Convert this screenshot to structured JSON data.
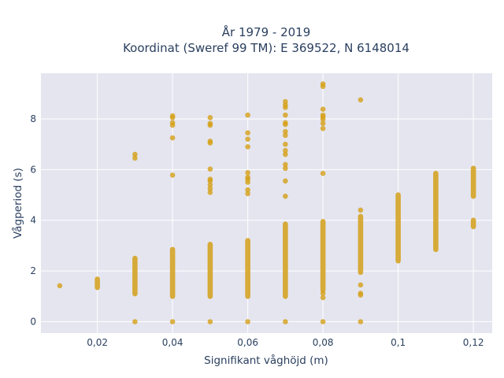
{
  "chart_data": {
    "type": "scatter",
    "title": "År 1979 - 2019",
    "subtitle": "Koordinat (Sweref 99 TM): E 369522, N 6148014",
    "xlabel": "Signifikant våghöjd (m)",
    "ylabel": "Vågperiod (s)",
    "xlim": [
      0.005,
      0.125
    ],
    "ylim": [
      -0.45,
      9.8
    ],
    "x_ticks": [
      0.02,
      0.04,
      0.06,
      0.08,
      0.1,
      0.12
    ],
    "x_tick_labels": [
      "0,02",
      "0,04",
      "0,06",
      "0,08",
      "0,1",
      "0,12"
    ],
    "y_ticks": [
      0,
      2,
      4,
      6,
      8
    ],
    "y_tick_labels": [
      "0",
      "2",
      "4",
      "6",
      "8"
    ],
    "grid": true,
    "background": "#e5e5f0",
    "marker_color": "#d4a017",
    "series": [
      {
        "ranges": [
          {
            "x": 0.02,
            "from": 1.35,
            "to": 1.68
          },
          {
            "x": 0.03,
            "from": 1.1,
            "to": 2.5
          },
          {
            "x": 0.04,
            "from": 1.0,
            "to": 2.85
          },
          {
            "x": 0.05,
            "from": 1.0,
            "to": 3.05
          },
          {
            "x": 0.06,
            "from": 1.0,
            "to": 3.2
          },
          {
            "x": 0.07,
            "from": 1.0,
            "to": 3.85
          },
          {
            "x": 0.08,
            "from": 1.25,
            "to": 3.95
          },
          {
            "x": 0.09,
            "from": 1.95,
            "to": 4.15
          },
          {
            "x": 0.1,
            "from": 2.4,
            "to": 5.0
          },
          {
            "x": 0.11,
            "from": 2.85,
            "to": 5.85
          },
          {
            "x": 0.12,
            "from": 4.95,
            "to": 6.05
          },
          {
            "x": 0.12,
            "from": 3.75,
            "to": 4.0
          }
        ],
        "points": [
          {
            "x": 0.01,
            "y": 1.42
          },
          {
            "x": 0.03,
            "y": 0.0
          },
          {
            "x": 0.03,
            "y": 6.45
          },
          {
            "x": 0.03,
            "y": 6.6
          },
          {
            "x": 0.04,
            "y": 0.0
          },
          {
            "x": 0.04,
            "y": 5.78
          },
          {
            "x": 0.04,
            "y": 7.25
          },
          {
            "x": 0.04,
            "y": 7.75
          },
          {
            "x": 0.04,
            "y": 7.85
          },
          {
            "x": 0.04,
            "y": 8.05
          },
          {
            "x": 0.04,
            "y": 8.12
          },
          {
            "x": 0.05,
            "y": 0.0
          },
          {
            "x": 0.05,
            "y": 5.1
          },
          {
            "x": 0.05,
            "y": 5.25
          },
          {
            "x": 0.05,
            "y": 5.4
          },
          {
            "x": 0.05,
            "y": 5.55
          },
          {
            "x": 0.05,
            "y": 5.62
          },
          {
            "x": 0.05,
            "y": 6.02
          },
          {
            "x": 0.05,
            "y": 7.05
          },
          {
            "x": 0.05,
            "y": 7.12
          },
          {
            "x": 0.05,
            "y": 7.75
          },
          {
            "x": 0.05,
            "y": 7.82
          },
          {
            "x": 0.05,
            "y": 8.05
          },
          {
            "x": 0.06,
            "y": 0.0
          },
          {
            "x": 0.06,
            "y": 5.05
          },
          {
            "x": 0.06,
            "y": 5.2
          },
          {
            "x": 0.06,
            "y": 5.5
          },
          {
            "x": 0.06,
            "y": 5.62
          },
          {
            "x": 0.06,
            "y": 5.7
          },
          {
            "x": 0.06,
            "y": 5.88
          },
          {
            "x": 0.06,
            "y": 6.9
          },
          {
            "x": 0.06,
            "y": 7.2
          },
          {
            "x": 0.06,
            "y": 7.45
          },
          {
            "x": 0.06,
            "y": 8.15
          },
          {
            "x": 0.07,
            "y": 0.0
          },
          {
            "x": 0.07,
            "y": 4.95
          },
          {
            "x": 0.07,
            "y": 5.55
          },
          {
            "x": 0.07,
            "y": 6.05
          },
          {
            "x": 0.07,
            "y": 6.2
          },
          {
            "x": 0.07,
            "y": 6.6
          },
          {
            "x": 0.07,
            "y": 6.75
          },
          {
            "x": 0.07,
            "y": 7.0
          },
          {
            "x": 0.07,
            "y": 7.35
          },
          {
            "x": 0.07,
            "y": 7.5
          },
          {
            "x": 0.07,
            "y": 7.78
          },
          {
            "x": 0.07,
            "y": 7.85
          },
          {
            "x": 0.07,
            "y": 8.15
          },
          {
            "x": 0.07,
            "y": 8.45
          },
          {
            "x": 0.07,
            "y": 8.55
          },
          {
            "x": 0.07,
            "y": 8.68
          },
          {
            "x": 0.08,
            "y": 0.0
          },
          {
            "x": 0.08,
            "y": 0.95
          },
          {
            "x": 0.08,
            "y": 1.12
          },
          {
            "x": 0.08,
            "y": 5.85
          },
          {
            "x": 0.08,
            "y": 7.62
          },
          {
            "x": 0.08,
            "y": 7.82
          },
          {
            "x": 0.08,
            "y": 7.98
          },
          {
            "x": 0.08,
            "y": 8.08
          },
          {
            "x": 0.08,
            "y": 8.15
          },
          {
            "x": 0.08,
            "y": 8.38
          },
          {
            "x": 0.08,
            "y": 9.28
          },
          {
            "x": 0.08,
            "y": 9.38
          },
          {
            "x": 0.09,
            "y": 0.0
          },
          {
            "x": 0.09,
            "y": 1.05
          },
          {
            "x": 0.09,
            "y": 1.12
          },
          {
            "x": 0.09,
            "y": 1.45
          },
          {
            "x": 0.09,
            "y": 4.4
          },
          {
            "x": 0.09,
            "y": 8.75
          }
        ]
      }
    ]
  }
}
